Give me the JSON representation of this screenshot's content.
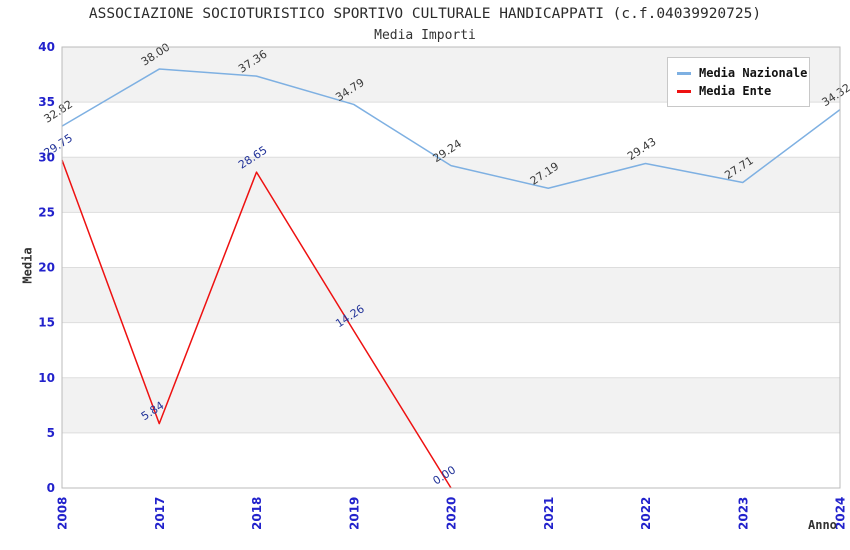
{
  "chart_data": {
    "type": "line",
    "title": "ASSOCIAZIONE SOCIOTURISTICO SPORTIVO CULTURALE HANDICAPPATI (c.f.04039920725)",
    "subtitle": "Media Importi",
    "xlabel": "Anno",
    "ylabel": "Media",
    "categories": [
      "2008",
      "2017",
      "2018",
      "2019",
      "2020",
      "2021",
      "2022",
      "2023",
      "2024"
    ],
    "series": [
      {
        "name": "Media Nazionale",
        "color": "#7eb0e2",
        "label_color": "#3a3a3a",
        "values": [
          32.82,
          38.0,
          37.36,
          34.79,
          29.24,
          27.19,
          29.43,
          27.71,
          34.32
        ]
      },
      {
        "name": "Media Ente",
        "color": "#ee1111",
        "label_color": "#223399",
        "values": [
          29.75,
          5.84,
          28.65,
          14.26,
          0.0,
          null,
          null,
          null,
          null
        ]
      }
    ],
    "ylim": [
      0,
      40
    ],
    "ytick_step": 5,
    "yticks": [
      "0",
      "5",
      "10",
      "15",
      "20",
      "25",
      "30",
      "35",
      "40"
    ],
    "grid": true,
    "legend_position": "top-right",
    "tick_color": "#2222cc",
    "grid_color": "#dddddd",
    "border_color": "#bbbbbb",
    "band_colors": [
      "#f2f2f2",
      "#ffffff"
    ],
    "data_label_rotation_deg": -33
  }
}
